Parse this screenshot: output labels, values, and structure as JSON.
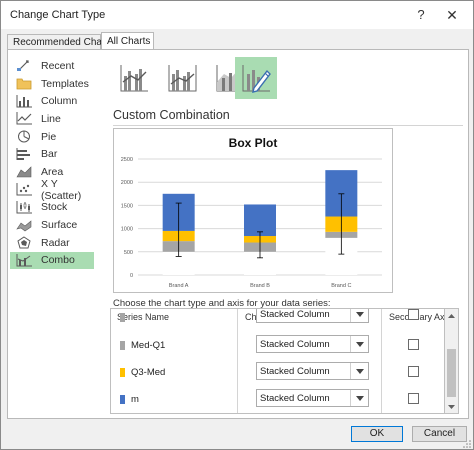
{
  "window": {
    "title": "Change Chart Type",
    "help_glyph": "?",
    "close_glyph": "✕"
  },
  "tabs": [
    {
      "label": "Recommended Charts",
      "selected": false
    },
    {
      "label": "All Charts",
      "selected": true
    }
  ],
  "sidebar": {
    "items": [
      {
        "label": "Recent",
        "icon": "recent-icon"
      },
      {
        "label": "Templates",
        "icon": "folder-icon"
      },
      {
        "label": "Column",
        "icon": "column-chart-icon"
      },
      {
        "label": "Line",
        "icon": "line-chart-icon"
      },
      {
        "label": "Pie",
        "icon": "pie-chart-icon"
      },
      {
        "label": "Bar",
        "icon": "bar-chart-icon"
      },
      {
        "label": "Area",
        "icon": "area-chart-icon"
      },
      {
        "label": "X Y (Scatter)",
        "icon": "scatter-chart-icon"
      },
      {
        "label": "Stock",
        "icon": "stock-chart-icon"
      },
      {
        "label": "Surface",
        "icon": "surface-chart-icon"
      },
      {
        "label": "Radar",
        "icon": "radar-chart-icon"
      },
      {
        "label": "Combo",
        "icon": "combo-chart-icon",
        "selected": true
      }
    ]
  },
  "chart_types": [
    {
      "icon": "clustered-column-line-icon",
      "selected": false
    },
    {
      "icon": "clustered-column-line-secondary-icon",
      "selected": false
    },
    {
      "icon": "stacked-area-column-icon",
      "selected": false
    },
    {
      "icon": "custom-combination-icon",
      "selected": true
    }
  ],
  "section_title": "Custom Combination",
  "choose_label": "Choose the chart type and axis for your data series:",
  "grid": {
    "headers": {
      "name": "Series Name",
      "type": "Chart Type",
      "axis": "Secondary Axis"
    },
    "rows": [
      {
        "name": "",
        "type": "Stacked Column",
        "color": "#a5a5a5",
        "secondary_axis": false,
        "partial": true
      },
      {
        "name": "Med-Q1",
        "type": "Stacked Column",
        "color": "#a5a5a5",
        "secondary_axis": false
      },
      {
        "name": "Q3-Med",
        "type": "Stacked Column",
        "color": "#ffc000",
        "secondary_axis": false
      },
      {
        "name": "m",
        "type": "Stacked Column",
        "color": "#4472c4",
        "secondary_axis": false
      }
    ]
  },
  "buttons": {
    "ok": "OK",
    "cancel": "Cancel"
  },
  "colors": {
    "accent_selected": "#a9dcb2",
    "focus_border": "#0078d7"
  },
  "chart_data": {
    "type": "bar",
    "title": "Box Plot",
    "categories": [
      "Brand A",
      "Brand B",
      "Brand C"
    ],
    "ylim": [
      0,
      2500
    ],
    "yticks": [
      0,
      500,
      1000,
      1500,
      2000,
      2500
    ],
    "grid": true,
    "stacked": true,
    "series": [
      {
        "values": [
          500,
          500,
          800
        ],
        "color": "#ffffff"
      },
      {
        "name": "Med-Q1",
        "values": [
          230,
          200,
          130
        ],
        "color": "#a5a5a5"
      },
      {
        "name": "Q3-Med",
        "values": [
          220,
          140,
          330
        ],
        "color": "#ffc000"
      },
      {
        "name": "m",
        "values": [
          800,
          680,
          1000
        ],
        "color": "#4472c4"
      }
    ],
    "whiskers": [
      {
        "min": 400,
        "max": 1550
      },
      {
        "min": 370,
        "max": 930
      },
      {
        "min": 450,
        "max": 1750
      }
    ]
  }
}
